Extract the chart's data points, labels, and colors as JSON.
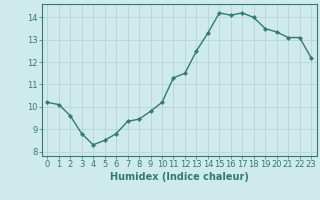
{
  "x": [
    0,
    1,
    2,
    3,
    4,
    5,
    6,
    7,
    8,
    9,
    10,
    11,
    12,
    13,
    14,
    15,
    16,
    17,
    18,
    19,
    20,
    21,
    22,
    23
  ],
  "y": [
    10.2,
    10.1,
    9.6,
    8.8,
    8.3,
    8.5,
    8.8,
    9.35,
    9.45,
    9.8,
    10.2,
    11.3,
    11.5,
    12.5,
    13.3,
    14.2,
    14.1,
    14.2,
    14.0,
    13.5,
    13.35,
    13.1,
    13.1,
    12.2
  ],
  "line_color": "#2e7d6e",
  "marker": "D",
  "marker_size": 2.2,
  "bg_color": "#ceeaea",
  "grid_color": "#b8d4d4",
  "xlabel": "Humidex (Indice chaleur)",
  "ylim": [
    7.8,
    14.6
  ],
  "xlim": [
    -0.5,
    23.5
  ],
  "yticks": [
    8,
    9,
    10,
    11,
    12,
    13,
    14
  ],
  "xticks": [
    0,
    1,
    2,
    3,
    4,
    5,
    6,
    7,
    8,
    9,
    10,
    11,
    12,
    13,
    14,
    15,
    16,
    17,
    18,
    19,
    20,
    21,
    22,
    23
  ],
  "xlabel_fontsize": 7.0,
  "tick_fontsize": 6.0,
  "line_width": 1.0
}
